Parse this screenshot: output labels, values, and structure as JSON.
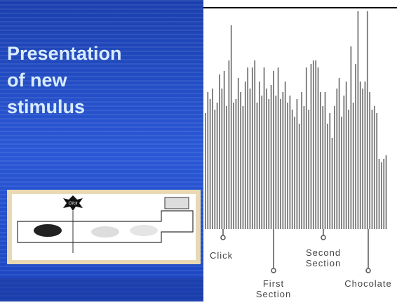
{
  "slide": {
    "title_lines": [
      "Presentation",
      "of new",
      "stimulus"
    ],
    "figure": {
      "bar_heights": [
        165,
        195,
        185,
        200,
        170,
        180,
        220,
        200,
        225,
        175,
        240,
        290,
        180,
        185,
        215,
        195,
        175,
        210,
        230,
        200,
        230,
        240,
        180,
        210,
        190,
        230,
        200,
        185,
        205,
        225,
        190,
        230,
        185,
        195,
        210,
        180,
        190,
        170,
        160,
        185,
        150,
        195,
        175,
        230,
        170,
        235,
        240,
        240,
        230,
        195,
        175,
        195,
        150,
        165,
        130,
        175,
        200,
        215,
        160,
        190,
        210,
        170,
        260,
        180,
        235,
        310,
        210,
        200,
        210,
        310,
        195,
        170,
        175,
        165,
        100,
        95,
        100,
        105
      ],
      "markers": [
        {
          "lines": [
            "Click"
          ]
        },
        {
          "lines": [
            "First",
            "Section"
          ]
        },
        {
          "lines": [
            "Second",
            "Section"
          ]
        },
        {
          "lines": [
            "Chocolate"
          ]
        }
      ]
    },
    "inset_label": "Click"
  }
}
